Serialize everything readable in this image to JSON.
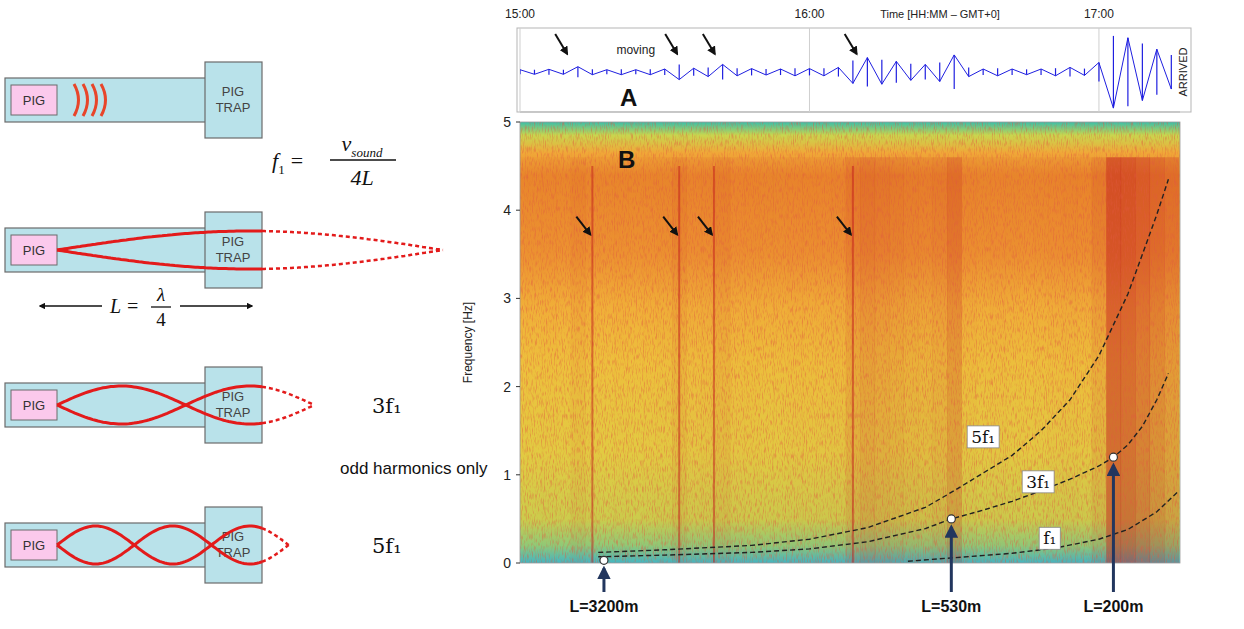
{
  "diagram": {
    "pig": "PIG",
    "trap": "PIG TRAP",
    "formula": {
      "f": "f",
      "f_sub": "1",
      "v": "v",
      "v_sub": "sound",
      "den": "4L"
    },
    "length": {
      "left": "L =",
      "num": "λ",
      "den": "4"
    },
    "modes": [
      "3f₁",
      "5f₁"
    ],
    "note": "odd harmonics only"
  },
  "chart_data": [
    {
      "type": "line",
      "title": "A",
      "x_label": "Time [HH:MM – GMT+0]",
      "x": [
        15.0,
        15.05,
        15.1,
        15.15,
        15.2,
        15.25,
        15.3,
        15.35,
        15.4,
        15.45,
        15.5,
        15.55,
        15.6,
        15.65,
        15.7,
        15.75,
        15.8,
        15.85,
        15.9,
        15.95,
        16.0,
        16.05,
        16.1,
        16.15,
        16.2,
        16.25,
        16.3,
        16.35,
        16.4,
        16.45,
        16.5,
        16.55,
        16.6,
        16.65,
        16.7,
        16.75,
        16.8,
        16.85,
        16.9,
        16.95,
        17.0,
        17.05,
        17.1,
        17.15,
        17.2,
        17.25
      ],
      "values": [
        0.06,
        0.06,
        0.07,
        0.06,
        0.14,
        0.07,
        0.06,
        0.07,
        0.06,
        0.07,
        0.08,
        0.2,
        0.1,
        0.12,
        0.2,
        0.1,
        0.09,
        0.08,
        0.08,
        0.1,
        0.09,
        0.1,
        0.12,
        0.3,
        0.38,
        0.32,
        0.28,
        0.22,
        0.2,
        0.25,
        0.45,
        0.12,
        0.08,
        0.1,
        0.08,
        0.07,
        0.08,
        0.1,
        0.12,
        0.09,
        0.25,
        0.95,
        0.9,
        0.75,
        0.6,
        0.45
      ],
      "color": "#1f1fe0",
      "xlim": [
        15,
        17.28
      ],
      "ylim": [
        0,
        1
      ],
      "xticks": [
        {
          "value": 15,
          "label": "15:00"
        },
        {
          "value": 16,
          "label": "16:00"
        },
        {
          "value": 17,
          "label": "17:00"
        }
      ],
      "grid": true,
      "tick_labels": "x",
      "events": [
        15.17,
        15.55,
        15.68,
        16.17
      ],
      "annotations": [
        {
          "text": "moving",
          "x": 15.4
        },
        {
          "text": "ARRIVED",
          "x": 17.27
        }
      ]
    },
    {
      "type": "line",
      "title": "B",
      "y_label": "Frequency [Hz]",
      "xlim": [
        15,
        17.28
      ],
      "ylim": [
        0,
        5
      ],
      "yticks": [
        0,
        1,
        2,
        3,
        4,
        5
      ],
      "tick_labels": "y",
      "series": [
        {
          "name": "f₁",
          "color": "#222222",
          "line_style": "dashed",
          "label_x": 16.83,
          "label_y": 0.28,
          "x": [
            16.34,
            16.5,
            16.7,
            16.85,
            17.0,
            17.1,
            17.2,
            17.27
          ],
          "values": [
            0.02,
            0.06,
            0.11,
            0.17,
            0.27,
            0.38,
            0.58,
            0.8
          ]
        },
        {
          "name": "3f₁",
          "color": "#222222",
          "line_style": "dashed",
          "label_x": 16.79,
          "label_y": 0.92,
          "x": [
            15.27,
            15.5,
            15.8,
            16.0,
            16.2,
            16.4,
            16.49,
            16.6,
            16.7,
            16.8,
            16.9,
            17.0,
            17.05,
            17.1,
            17.15,
            17.2,
            17.24
          ],
          "values": [
            0.07,
            0.09,
            0.12,
            0.16,
            0.24,
            0.39,
            0.5,
            0.6,
            0.7,
            0.82,
            0.95,
            1.1,
            1.2,
            1.34,
            1.55,
            1.85,
            2.15
          ]
        },
        {
          "name": "5f₁",
          "color": "#222222",
          "line_style": "dashed",
          "label_x": 16.6,
          "label_y": 1.43,
          "x": [
            15.27,
            15.5,
            15.8,
            16.0,
            16.2,
            16.4,
            16.5,
            16.6,
            16.7,
            16.8,
            16.9,
            17.0,
            17.05,
            17.1,
            17.15,
            17.2,
            17.24
          ],
          "values": [
            0.12,
            0.15,
            0.2,
            0.27,
            0.4,
            0.63,
            0.82,
            1.02,
            1.22,
            1.5,
            1.85,
            2.35,
            2.7,
            3.05,
            3.5,
            3.95,
            4.35
          ]
        }
      ],
      "points": [
        {
          "label": "L=3200m",
          "x": 15.29,
          "y": 0.03
        },
        {
          "label": "L=530m",
          "x": 16.49,
          "y": 0.5
        },
        {
          "label": "L=200m",
          "x": 17.05,
          "y": 1.2
        }
      ],
      "events": {
        "x": [
          15.25,
          15.55,
          15.67,
          16.15
        ],
        "y": 3.7
      }
    }
  ]
}
